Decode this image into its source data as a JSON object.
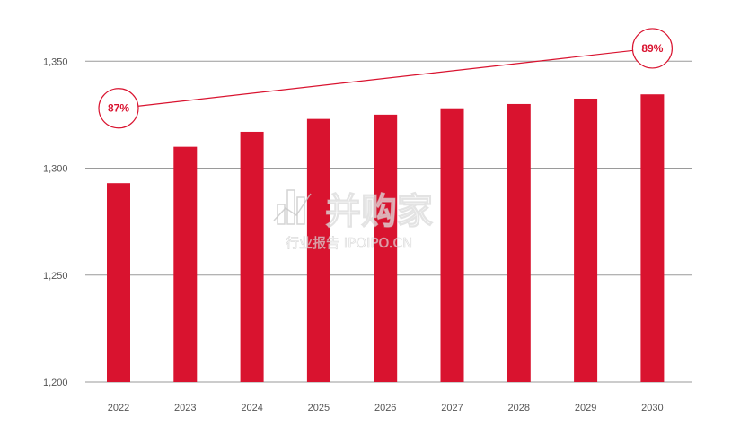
{
  "chart_data": {
    "type": "bar",
    "title": "",
    "xlabel": "",
    "ylabel": "",
    "categories": [
      "2022",
      "2023",
      "2024",
      "2025",
      "2026",
      "2027",
      "2028",
      "2029",
      "2030"
    ],
    "values": [
      1293,
      1310,
      1317,
      1323,
      1325,
      1328,
      1330,
      1332.5,
      1334.5
    ],
    "ylim": [
      1200,
      1358
    ],
    "yticks": [
      1200,
      1250,
      1300,
      1350
    ],
    "ytick_labels": [
      "1,200",
      "1,250",
      "1,300",
      "1,350"
    ],
    "grid": true,
    "bar_color": "#d9132f",
    "grid_color": "#9a9a9a",
    "annotations": [
      {
        "category": "2022",
        "label": "87%",
        "level": 1328
      },
      {
        "category": "2030",
        "label": "89%",
        "level": 1356
      }
    ]
  },
  "watermark": {
    "brand": "并购家",
    "subtitle": "行业报告 IPOIPO.CN"
  }
}
